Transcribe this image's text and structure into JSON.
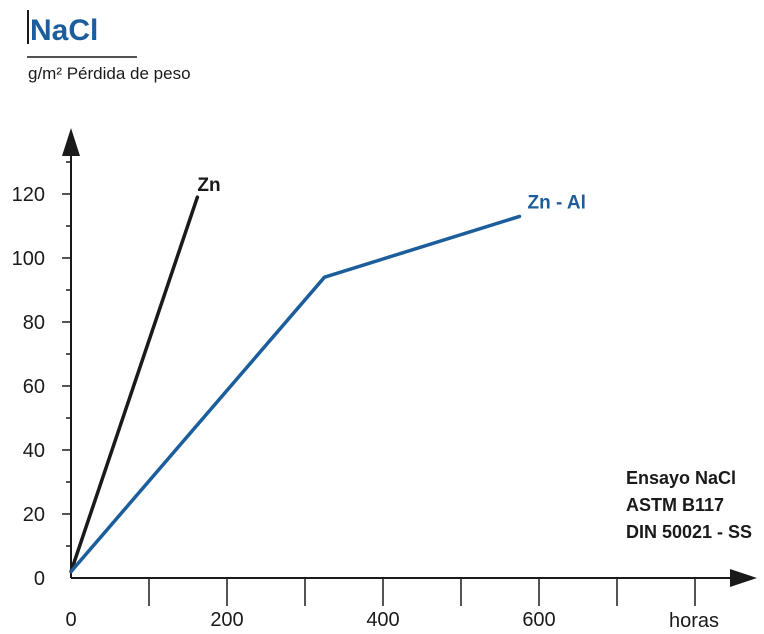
{
  "chart_data": {
    "type": "line",
    "title": "NaCl",
    "ylabel": "g/m² Pérdida de peso",
    "xlabel": "horas",
    "xlim": [
      0,
      800
    ],
    "ylim": [
      0,
      140
    ],
    "x_ticks": [
      0,
      200,
      400,
      600
    ],
    "y_ticks": [
      0,
      20,
      40,
      60,
      80,
      100,
      120
    ],
    "series": [
      {
        "name": "Zn",
        "color": "#1a1a1a",
        "points": [
          [
            0,
            2
          ],
          [
            162,
            119
          ]
        ]
      },
      {
        "name": "Zn - Al",
        "color": "#1c5e9c",
        "points": [
          [
            0,
            2
          ],
          [
            325,
            94
          ],
          [
            575,
            113
          ]
        ]
      }
    ],
    "annotation": [
      "Ensayo NaCl",
      "ASTM B117",
      "DIN 50021 - SS"
    ],
    "grid": false,
    "colors": {
      "title": "#1c5e9c",
      "axis": "#1a1a1a"
    }
  }
}
